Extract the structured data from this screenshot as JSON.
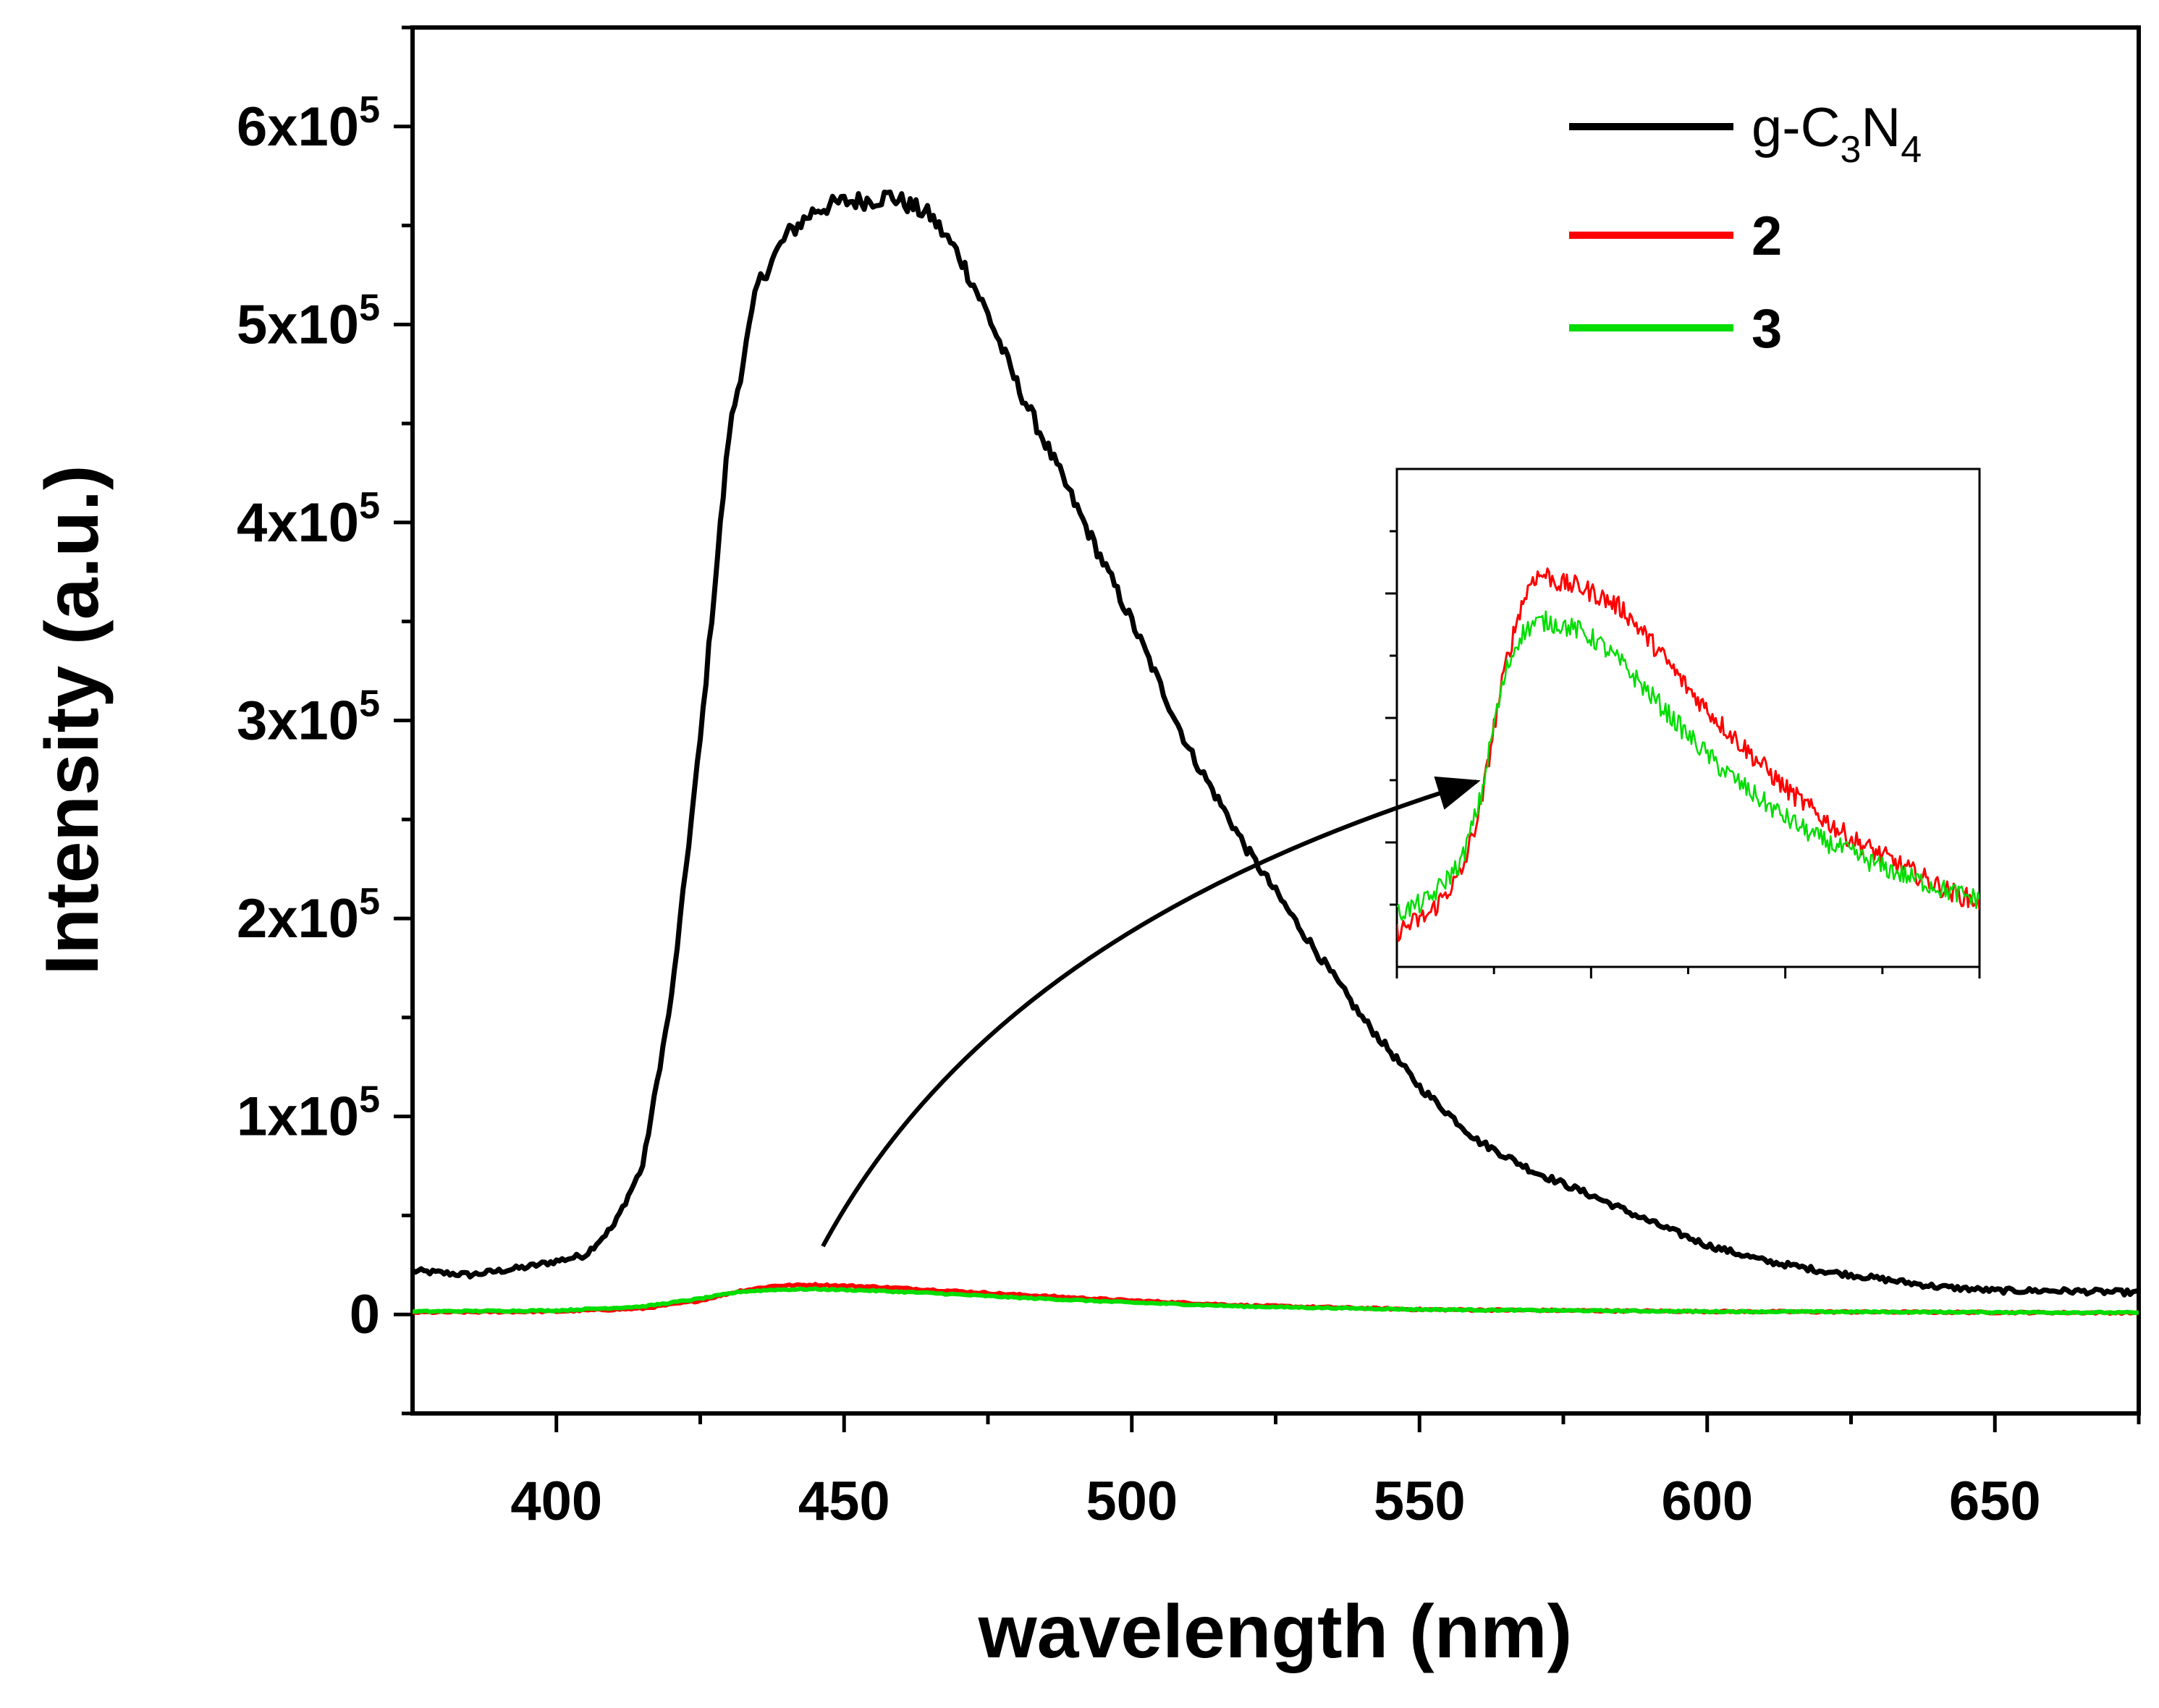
{
  "chart_data": [
    {
      "type": "line",
      "xlabel": "wavelength (nm)",
      "ylabel": "Intensity (a.u.)",
      "xlim": [
        375,
        675
      ],
      "ylim": [
        -50000,
        650000
      ],
      "x_ticks": [
        400,
        450,
        500,
        550,
        600,
        650
      ],
      "x_tick_labels": [
        "400",
        "450",
        "500",
        "550",
        "600",
        "650"
      ],
      "y_ticks": [
        0,
        100000,
        200000,
        300000,
        400000,
        500000,
        600000
      ],
      "y_tick_labels": [
        {
          "text": "0",
          "mantissa": "",
          "exp": ""
        },
        {
          "text": "1x10",
          "mantissa": "1x10",
          "exp": "5"
        },
        {
          "text": "2x10",
          "mantissa": "2x10",
          "exp": "5"
        },
        {
          "text": "3x10",
          "mantissa": "3x10",
          "exp": "5"
        },
        {
          "text": "4x10",
          "mantissa": "4x10",
          "exp": "5"
        },
        {
          "text": "5x10",
          "mantissa": "5x10",
          "exp": "5"
        },
        {
          "text": "6x10",
          "mantissa": "6x10",
          "exp": "5"
        }
      ],
      "legend_position": "top-right",
      "grid": false,
      "legend": [
        {
          "parts": [
            {
              "t": "g-C",
              "s": ""
            },
            {
              "t": "3",
              "s": "sub"
            },
            {
              "t": "N",
              "s": ""
            },
            {
              "t": "4",
              "s": "sub"
            }
          ],
          "color": "#000000",
          "bold": false
        },
        {
          "parts": [
            {
              "t": "2",
              "s": ""
            }
          ],
          "color": "#ff0000",
          "bold": true
        },
        {
          "parts": [
            {
              "t": "3",
              "s": ""
            }
          ],
          "color": "#00dd00",
          "bold": true
        }
      ],
      "series": [
        {
          "name": "g-C3N4",
          "color": "#000000",
          "x": [
            375,
            385,
            395,
            405,
            410,
            415,
            420,
            425,
            430,
            435,
            440,
            445,
            450,
            455,
            458,
            465,
            470,
            475,
            480,
            490,
            500,
            510,
            520,
            530,
            540,
            550,
            560,
            570,
            580,
            590,
            600,
            610,
            620,
            630,
            640,
            650,
            660,
            675
          ],
          "y": [
            22000,
            20000,
            24000,
            30000,
            45000,
            75000,
            160000,
            290000,
            445000,
            520000,
            545000,
            558000,
            562000,
            563000,
            565000,
            555000,
            535000,
            505000,
            470000,
            410000,
            350000,
            285000,
            235000,
            192000,
            150000,
            115000,
            88000,
            72000,
            60000,
            47000,
            35000,
            27000,
            22000,
            18000,
            14000,
            12000,
            12000,
            11000
          ]
        },
        {
          "name": "2",
          "color": "#ff0000",
          "x": [
            375,
            400,
            415,
            425,
            432,
            438,
            445,
            455,
            465,
            480,
            500,
            520,
            550,
            600,
            675
          ],
          "y": [
            1000,
            1500,
            3000,
            7000,
            12000,
            14500,
            15000,
            14000,
            12500,
            10000,
            7000,
            4500,
            2500,
            1500,
            800
          ]
        },
        {
          "name": "3",
          "color": "#00dd00",
          "x": [
            375,
            400,
            415,
            425,
            432,
            438,
            445,
            455,
            465,
            480,
            500,
            520,
            550,
            600,
            675
          ],
          "y": [
            1500,
            2000,
            4000,
            8000,
            11500,
            12500,
            12800,
            12000,
            10800,
            8500,
            6000,
            4000,
            2500,
            1500,
            900
          ]
        }
      ],
      "annotations": [
        {
          "type": "arrow",
          "from": [
            447,
            38000
          ],
          "to": "inset",
          "color": "#000000"
        }
      ]
    },
    {
      "type": "line",
      "role": "inset",
      "note_axes": "no tick labels",
      "xlim": [
        415,
        505
      ],
      "ylim": [
        0,
        17000
      ],
      "series": [
        {
          "name": "2",
          "color": "#ff0000",
          "x": [
            415,
            420,
            425,
            428,
            430,
            432,
            434,
            436,
            438,
            440,
            443,
            446,
            450,
            455,
            460,
            465,
            470,
            475,
            480,
            485,
            490,
            495,
            500,
            505
          ],
          "y": [
            1200,
            1800,
            3200,
            5500,
            8200,
            10500,
            12200,
            13300,
            13400,
            13100,
            13000,
            12700,
            12200,
            10900,
            9500,
            8300,
            7200,
            6100,
            5200,
            4400,
            3800,
            3200,
            2600,
            2200
          ]
        },
        {
          "name": "3",
          "color": "#00dd00",
          "x": [
            415,
            420,
            425,
            428,
            430,
            432,
            434,
            436,
            438,
            440,
            443,
            446,
            450,
            455,
            460,
            465,
            470,
            475,
            480,
            485,
            490,
            495,
            500,
            505
          ],
          "y": [
            1800,
            2300,
            3600,
            5800,
            8300,
            10200,
            11300,
            11700,
            11800,
            11700,
            11500,
            11100,
            10300,
            9100,
            7900,
            6800,
            5900,
            5100,
            4400,
            3900,
            3400,
            3000,
            2600,
            2300
          ]
        }
      ]
    }
  ]
}
